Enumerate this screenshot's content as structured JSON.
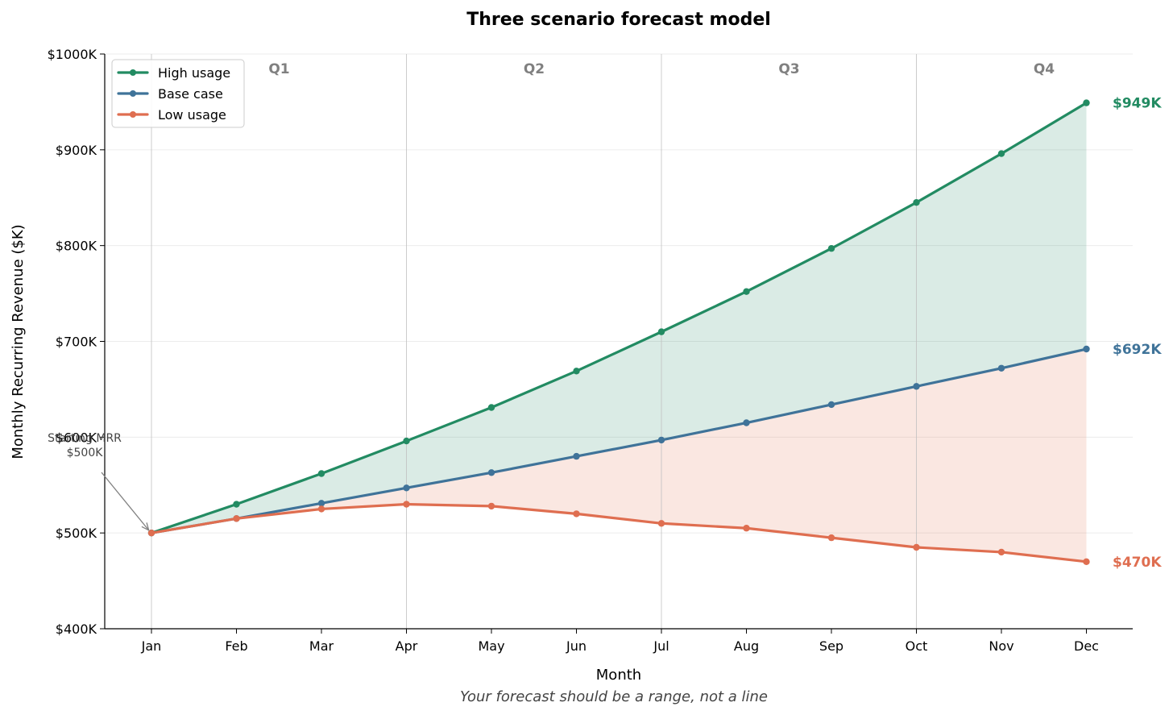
{
  "chart_data": {
    "type": "line",
    "title": "Three scenario forecast model",
    "xlabel": "Month",
    "ylabel": "Monthly Recurring Revenue ($K)",
    "caption": "Your forecast should be a range, not a line",
    "categories": [
      "Jan",
      "Feb",
      "Mar",
      "Apr",
      "May",
      "Jun",
      "Jul",
      "Aug",
      "Sep",
      "Oct",
      "Nov",
      "Dec"
    ],
    "ylim": [
      400,
      1000
    ],
    "yticks": [
      {
        "value": 400,
        "label": "$400K"
      },
      {
        "value": 500,
        "label": "$500K"
      },
      {
        "value": 600,
        "label": "$600K"
      },
      {
        "value": 700,
        "label": "$700K"
      },
      {
        "value": 800,
        "label": "$800K"
      },
      {
        "value": 900,
        "label": "$900K"
      },
      {
        "value": 1000,
        "label": "$1000K"
      }
    ],
    "series": [
      {
        "name": "High usage",
        "color": "#228b62",
        "values": [
          500,
          530,
          562,
          596,
          631,
          669,
          710,
          752,
          797,
          845,
          896,
          949
        ],
        "end_label": "$949K"
      },
      {
        "name": "Base case",
        "color": "#3f7399",
        "values": [
          500,
          515,
          531,
          547,
          563,
          580,
          597,
          615,
          634,
          653,
          672,
          692
        ],
        "end_label": "$692K"
      },
      {
        "name": "Low usage",
        "color": "#df6e50",
        "values": [
          500,
          515,
          525,
          530,
          528,
          520,
          510,
          505,
          495,
          485,
          480,
          470
        ],
        "end_label": "$470K"
      }
    ],
    "bands": [
      {
        "between": [
          "Base case",
          "High usage"
        ],
        "color": "#228b62"
      },
      {
        "between": [
          "Low usage",
          "Base case"
        ],
        "color": "#df6e50"
      }
    ],
    "quarters": [
      {
        "label": "Q1",
        "at": "Feb"
      },
      {
        "label": "Q2",
        "at": "May"
      },
      {
        "label": "Q3",
        "at": "Aug"
      },
      {
        "label": "Q4",
        "at": "Nov"
      }
    ],
    "quarter_dividers": [
      "Jan",
      "Apr",
      "Jul",
      "Oct"
    ],
    "annotation": {
      "lines": [
        "Starting MRR",
        "$500K"
      ],
      "points_to": {
        "x": "Jan",
        "y": 500
      }
    },
    "legend": "top-left",
    "grid": "horizontal"
  }
}
